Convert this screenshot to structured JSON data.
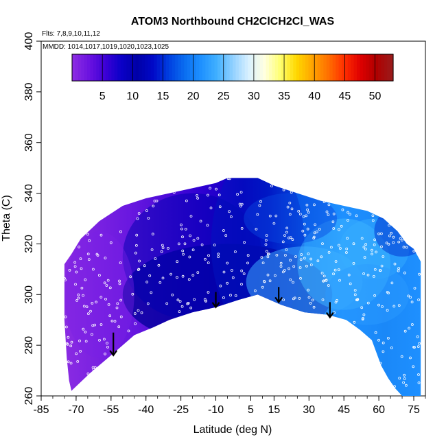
{
  "chart_data": {
    "type": "heatmap",
    "title": "ATOM3 Northbound CH2ClCH2Cl_WAS",
    "subtitle_flights": "Flts: 7,8,9,10,11,12",
    "subtitle_dates": "MMDD: 1014,1017,1019,1020,1023,1025",
    "xlabel": "Latitude (deg N)",
    "ylabel": "Theta (C)",
    "xlim": [
      -85,
      80
    ],
    "ylim": [
      260,
      400
    ],
    "x_ticks": [
      -85,
      -70,
      -55,
      -40,
      -25,
      -10,
      5,
      15,
      30,
      45,
      60,
      75
    ],
    "x_tick_labels": [
      "-85",
      "-70",
      "-55",
      "-40",
      "-25",
      "-10",
      "5",
      "15",
      "30",
      "45",
      "60",
      "75"
    ],
    "y_ticks": [
      260,
      280,
      300,
      320,
      340,
      360,
      380,
      400
    ],
    "y_tick_labels": [
      "260",
      "280",
      "300",
      "320",
      "340",
      "360",
      "380",
      "400"
    ],
    "colorbar": {
      "range": [
        0,
        53
      ],
      "ticks": [
        5,
        10,
        15,
        20,
        25,
        30,
        35,
        40,
        45,
        50
      ],
      "tick_labels": [
        "5",
        "10",
        "15",
        "20",
        "25",
        "30",
        "35",
        "40",
        "45",
        "50"
      ],
      "colors": [
        "#8a2be2",
        "#6a12e0",
        "#3c00d6",
        "#0a00c8",
        "#0000a8",
        "#0008c8",
        "#0040e0",
        "#0a6ef0",
        "#1e90ff",
        "#40b0ff",
        "#90d0ff",
        "#d8f0ff",
        "#ffffe0",
        "#ffff70",
        "#ffd800",
        "#ffa500",
        "#ff7000",
        "#ff3000",
        "#e00000",
        "#b00000",
        "#9b1a1a"
      ]
    },
    "surface_boundary": {
      "lower": [
        [
          -72,
          262
        ],
        [
          -64,
          269
        ],
        [
          -55,
          276
        ],
        [
          -45,
          284
        ],
        [
          -37,
          287
        ],
        [
          -30,
          290
        ],
        [
          -20,
          293
        ],
        [
          -10,
          295
        ],
        [
          0,
          298
        ],
        [
          8,
          300
        ],
        [
          18,
          296
        ],
        [
          28,
          293
        ],
        [
          38,
          292
        ],
        [
          46,
          290
        ],
        [
          52,
          286
        ],
        [
          57,
          282
        ],
        [
          61,
          272
        ],
        [
          64,
          267
        ],
        [
          67,
          263
        ],
        [
          70,
          260
        ],
        [
          78,
          260
        ]
      ],
      "upper": [
        [
          78,
          260
        ],
        [
          78,
          313
        ],
        [
          75,
          318
        ],
        [
          72,
          320
        ],
        [
          68,
          325
        ],
        [
          62,
          330
        ],
        [
          55,
          333
        ],
        [
          45,
          335
        ],
        [
          35,
          337
        ],
        [
          25,
          340
        ],
        [
          15,
          343
        ],
        [
          8,
          346
        ],
        [
          -5,
          346
        ],
        [
          -10,
          344
        ],
        [
          -20,
          342
        ],
        [
          -30,
          340
        ],
        [
          -40,
          338
        ],
        [
          -50,
          335
        ],
        [
          -60,
          329
        ],
        [
          -68,
          322
        ],
        [
          -72,
          316
        ],
        [
          -75,
          312
        ],
        [
          -75,
          290
        ],
        [
          -74,
          275
        ],
        [
          -73,
          266
        ],
        [
          -72,
          262
        ]
      ]
    },
    "arrows": [
      {
        "x": -54,
        "y_from": 285,
        "y_to": 276
      },
      {
        "x": -10,
        "y_from": 301,
        "y_to": 295
      },
      {
        "x": 17,
        "y_from": 303,
        "y_to": 297
      },
      {
        "x": 39,
        "y_from": 297,
        "y_to": 291
      }
    ],
    "sample_note": "white circles mark WAS sample locations"
  }
}
